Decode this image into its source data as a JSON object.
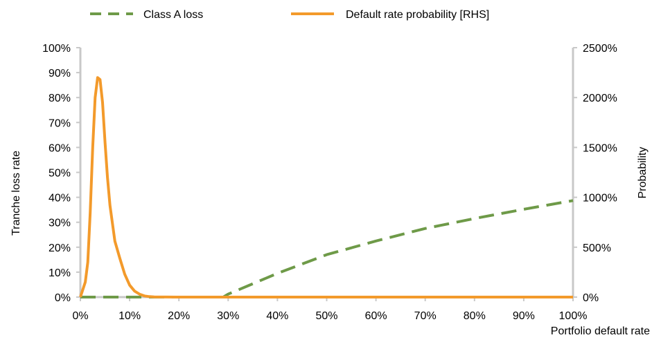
{
  "chart_data": {
    "type": "line",
    "legend": {
      "placement": "top"
    },
    "grid": false,
    "x_axis": {
      "label": "Portfolio default rate",
      "range": [
        0,
        100
      ],
      "ticks": [
        0,
        10,
        20,
        30,
        40,
        50,
        60,
        70,
        80,
        90,
        100
      ],
      "tick_labels": [
        "0%",
        "10%",
        "20%",
        "30%",
        "40%",
        "50%",
        "60%",
        "70%",
        "80%",
        "90%",
        "100%"
      ]
    },
    "y_axis_left": {
      "label": "Tranche loss rate",
      "range": [
        0,
        100
      ],
      "ticks": [
        0,
        10,
        20,
        30,
        40,
        50,
        60,
        70,
        80,
        90,
        100
      ],
      "tick_labels": [
        "0%",
        "10%",
        "20%",
        "30%",
        "40%",
        "50%",
        "60%",
        "70%",
        "80%",
        "90%",
        "100%"
      ]
    },
    "y_axis_right": {
      "label": "Probability",
      "range": [
        0,
        2500
      ],
      "ticks": [
        0,
        500,
        1000,
        1500,
        2000,
        2500
      ],
      "tick_labels": [
        "0%",
        "500%",
        "1000%",
        "1500%",
        "2000%",
        "2500%"
      ]
    },
    "series": [
      {
        "name": "Class A loss",
        "axis": "left",
        "color": "#6e9a48",
        "style": "dashed",
        "x": [
          0,
          29,
          30,
          40,
          50,
          60,
          70,
          80,
          90,
          100
        ],
        "y": [
          0,
          0,
          1.2,
          9.5,
          17,
          22.5,
          27.5,
          31.5,
          35.2,
          38.7
        ]
      },
      {
        "name": "Default rate probability [RHS]",
        "axis": "right",
        "color": "#f39a2b",
        "style": "solid",
        "x": [
          0,
          1,
          1.5,
          2,
          2.5,
          3,
          3.5,
          4,
          4.5,
          5,
          5.5,
          6,
          7,
          8,
          9,
          10,
          11,
          12,
          13,
          14,
          15,
          20,
          30,
          40,
          50,
          60,
          70,
          80,
          90,
          100
        ],
        "y": [
          0,
          150,
          350,
          850,
          1500,
          2000,
          2200,
          2180,
          1950,
          1550,
          1200,
          920,
          560,
          390,
          230,
          120,
          60,
          30,
          12,
          5,
          2,
          0,
          0,
          0,
          0,
          0,
          0,
          0,
          0,
          0
        ]
      }
    ]
  }
}
